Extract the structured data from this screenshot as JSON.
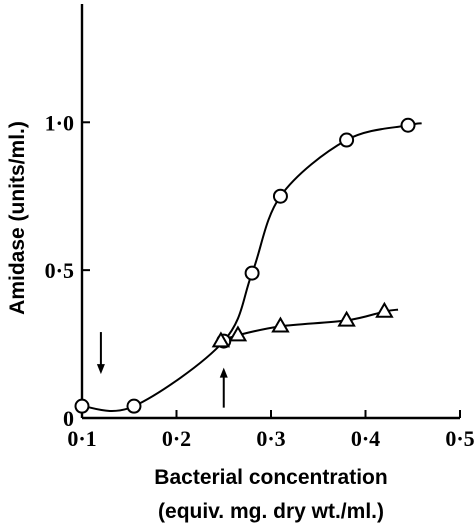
{
  "chart_data": {
    "type": "line",
    "title": "",
    "xlabel_line1": "Bacterial concentration",
    "xlabel_line2": "(equiv. mg. dry wt./ml.)",
    "ylabel": "Amidase (units/ml.)",
    "xlim": [
      0.1,
      0.5
    ],
    "ylim": [
      0,
      1.4
    ],
    "x_ticks": [
      0.1,
      0.2,
      0.3,
      0.4,
      0.5
    ],
    "x_tick_labels": [
      "0·1",
      "0·2",
      "0·3",
      "0·4",
      "0·5"
    ],
    "y_ticks": [
      0,
      0.5,
      1.0
    ],
    "y_tick_labels": [
      "0",
      "0·5",
      "1·0"
    ],
    "grid": false,
    "series": [
      {
        "marker": "circle",
        "x": [
          0.1,
          0.155,
          0.25,
          0.28,
          0.31,
          0.38,
          0.445
        ],
        "y": [
          0.04,
          0.04,
          0.26,
          0.49,
          0.75,
          0.94,
          0.99
        ]
      },
      {
        "marker": "triangle",
        "x": [
          0.247,
          0.265,
          0.31,
          0.38,
          0.42
        ],
        "y": [
          0.26,
          0.28,
          0.31,
          0.33,
          0.36
        ]
      }
    ],
    "annotations": [
      {
        "type": "arrow-down",
        "x": 0.12,
        "y": 0.25
      },
      {
        "type": "arrow-up",
        "x": 0.25,
        "y": 0.15
      }
    ]
  }
}
